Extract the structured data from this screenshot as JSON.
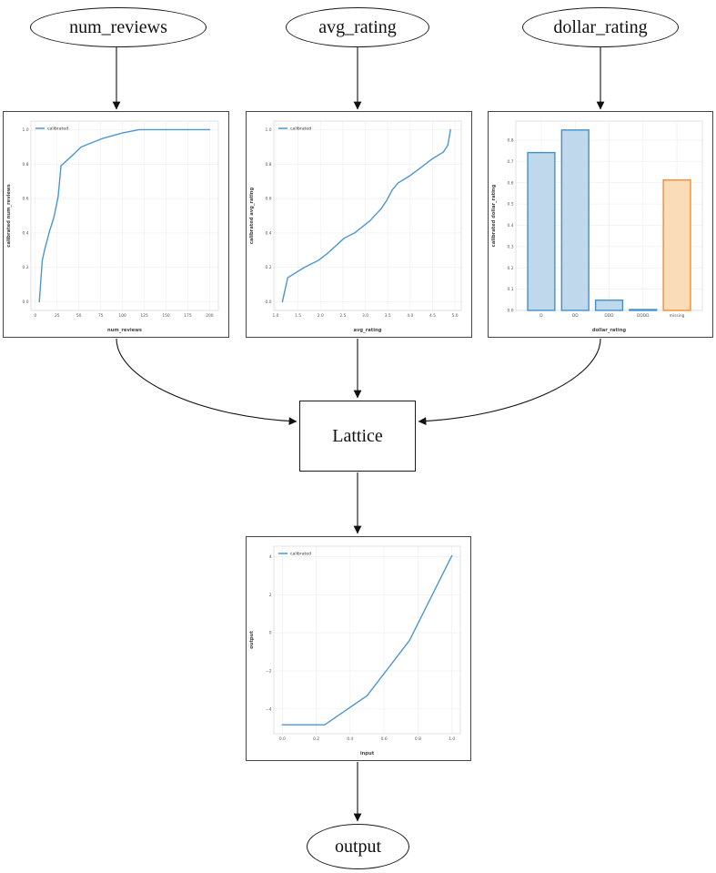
{
  "nodes": {
    "num_reviews": {
      "label": "num_reviews"
    },
    "avg_rating": {
      "label": "avg_rating"
    },
    "dollar_rating": {
      "label": "dollar_rating"
    },
    "lattice": {
      "label": "Lattice"
    },
    "output": {
      "label": "output"
    }
  },
  "colors": {
    "line_blue": "#4C96D2",
    "bar_blue_face": "#BFD8EC",
    "bar_blue_edge": "#4090CC",
    "bar_orange_face": "#FBDCB9",
    "bar_orange_edge": "#EF8E35",
    "edge_black": "#111111"
  },
  "chart_data": [
    {
      "type": "line",
      "title": "",
      "xlabel": "num_reviews",
      "ylabel": "calibrated num_reviews",
      "legend": [
        "calibrated"
      ],
      "legend_position": "upper left",
      "grid": true,
      "xlim": [
        -5,
        210
      ],
      "ylim": [
        -0.05,
        1.05
      ],
      "xticks": {
        "values": [
          0,
          25,
          50,
          75,
          100,
          125,
          150,
          175,
          200
        ],
        "labels": [
          "0",
          "25",
          "50",
          "75",
          "100",
          "125",
          "150",
          "175",
          "200"
        ]
      },
      "yticks": {
        "values": [
          0,
          0.2,
          0.4,
          0.6,
          0.8,
          1.0
        ],
        "labels": [
          "0.0",
          "0.2",
          "0.4",
          "0.6",
          "0.8",
          "1.0"
        ]
      },
      "series": [
        {
          "name": "calibrated",
          "color": "#4C96D2",
          "x": [
            4.6,
            8,
            10.6,
            16.3,
            21.3,
            26.2,
            29.5,
            44.6,
            52.8,
            77.7,
            99.3,
            119,
            200
          ],
          "y": [
            0.0,
            0.24,
            0.3,
            0.41,
            0.49,
            0.61,
            0.79,
            0.86,
            0.9,
            0.95,
            0.98,
            1.0,
            1.0
          ]
        }
      ]
    },
    {
      "type": "line",
      "title": "",
      "xlabel": "avg_rating",
      "ylabel": "calibrated avg_rating",
      "legend": [
        "calibrated"
      ],
      "legend_position": "upper left",
      "grid": true,
      "xlim": [
        0.96,
        5.14
      ],
      "ylim": [
        -0.05,
        1.05
      ],
      "xticks": {
        "values": [
          1.0,
          1.5,
          2.0,
          2.5,
          3.0,
          3.5,
          4.0,
          4.5,
          5.0
        ],
        "labels": [
          "1.0",
          "1.5",
          "2.0",
          "2.5",
          "3.0",
          "3.5",
          "4.0",
          "4.5",
          "5.0"
        ]
      },
      "yticks": {
        "values": [
          0,
          0.2,
          0.4,
          0.6,
          0.8,
          1.0
        ],
        "labels": [
          "0.0",
          "0.2",
          "0.4",
          "0.6",
          "0.8",
          "1.0"
        ]
      },
      "series": [
        {
          "name": "calibrated",
          "color": "#4C96D2",
          "x": [
            1.15,
            1.27,
            1.64,
            1.95,
            2.15,
            2.53,
            2.76,
            3.1,
            3.35,
            3.48,
            3.6,
            3.73,
            3.98,
            4.24,
            4.49,
            4.74,
            4.84,
            4.9
          ],
          "y": [
            0.0,
            0.14,
            0.2,
            0.24,
            0.28,
            0.37,
            0.4,
            0.47,
            0.54,
            0.59,
            0.65,
            0.69,
            0.73,
            0.78,
            0.83,
            0.87,
            0.91,
            1.0
          ]
        }
      ]
    },
    {
      "type": "bar",
      "title": "",
      "xlabel": "dollar_rating",
      "ylabel": "calibrated dollar_rating",
      "legend": [],
      "grid": true,
      "xlim": [
        -0.75,
        4.75
      ],
      "ylim": [
        0,
        0.89
      ],
      "categories": [
        "D",
        "DD",
        "DDD",
        "DDDD",
        "missing"
      ],
      "values": [
        0.742,
        0.848,
        0.048,
        0.004,
        0.613
      ],
      "bar_face": [
        "#BFD8EC",
        "#BFD8EC",
        "#BFD8EC",
        "#BFD8EC",
        "#FBDCB9"
      ],
      "bar_edge": [
        "#4090CC",
        "#4090CC",
        "#4090CC",
        "#4090CC",
        "#EF8E35"
      ],
      "xticks": {
        "values": [
          0,
          1,
          2,
          3,
          4
        ],
        "labels": [
          "D",
          "DD",
          "DDD",
          "DDDD",
          "missing"
        ]
      },
      "yticks": {
        "values": [
          0,
          0.1,
          0.2,
          0.3,
          0.4,
          0.5,
          0.6,
          0.7,
          0.8
        ],
        "labels": [
          "0.0",
          "0.1",
          "0.2",
          "0.3",
          "0.4",
          "0.5",
          "0.6",
          "0.7",
          "0.8"
        ]
      }
    },
    {
      "type": "line",
      "title": "",
      "xlabel": "input",
      "ylabel": "output",
      "legend": [
        "calibrated"
      ],
      "legend_position": "upper left",
      "grid": true,
      "xlim": [
        -0.05,
        1.05
      ],
      "ylim": [
        -5.3,
        4.55
      ],
      "xticks": {
        "values": [
          0,
          0.2,
          0.4,
          0.6,
          0.8,
          1.0
        ],
        "labels": [
          "0.0",
          "0.2",
          "0.4",
          "0.6",
          "0.8",
          "1.0"
        ]
      },
      "yticks": {
        "values": [
          -4,
          -2,
          0,
          2,
          4
        ],
        "labels": [
          "−4",
          "−2",
          "0",
          "2",
          "4"
        ]
      },
      "series": [
        {
          "name": "calibrated",
          "color": "#4C96D2",
          "x": [
            0.0,
            0.25,
            0.5,
            0.75,
            1.0
          ],
          "y": [
            -4.83,
            -4.83,
            -3.3,
            -0.4,
            4.05
          ]
        }
      ]
    }
  ]
}
